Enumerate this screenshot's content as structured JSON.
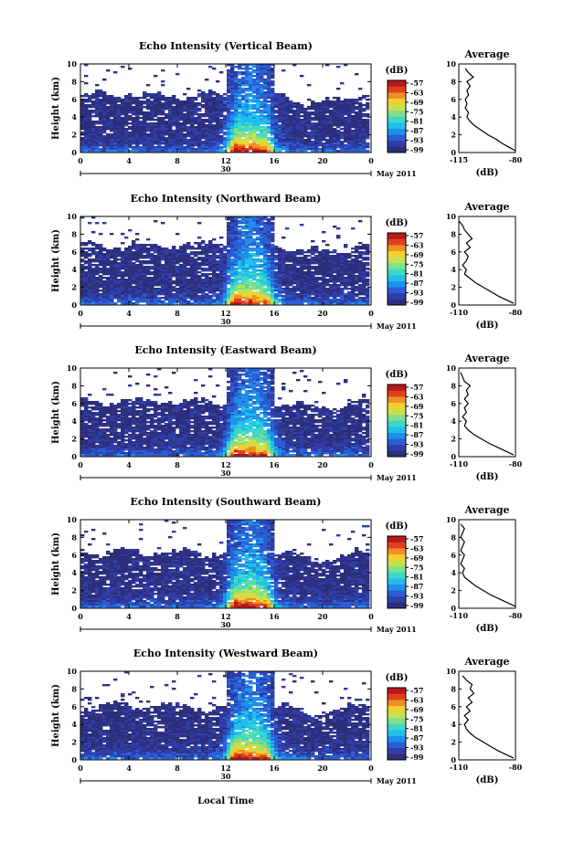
{
  "figure": {
    "xlabel_bottom": "Local Time",
    "date_label": "May 2011",
    "day_label": "30"
  },
  "colorbar": {
    "unit": "(dB)",
    "ticks": [
      "-57",
      "-63",
      "-69",
      "-75",
      "-81",
      "-87",
      "-93",
      "-99"
    ],
    "colors": [
      "#2d2f7c",
      "#2f3da6",
      "#2a5ed4",
      "#1f8fe8",
      "#20c0ec",
      "#3fd8c8",
      "#7de08a",
      "#c8e050",
      "#f0d030",
      "#f09020",
      "#e04020",
      "#b81818"
    ]
  },
  "chart_data": [
    {
      "type": "heatmap",
      "title": "Echo Intensity (Vertical Beam)",
      "xlabel": "",
      "ylabel": "Height (km)",
      "xlim": [
        0,
        24
      ],
      "ylim": [
        0,
        10
      ],
      "xticks": [
        "0",
        "4",
        "8",
        "12",
        "16",
        "20",
        "0"
      ],
      "yticks": [
        "0",
        "2",
        "4",
        "6",
        "8",
        "10"
      ],
      "clim": [
        -99,
        -57
      ],
      "profile": {
        "title": "Average",
        "xlabel": "(dB)",
        "xticks": [
          "-115",
          "-80"
        ],
        "xlim": [
          -115,
          -80
        ],
        "height": [
          0.2,
          0.6,
          1.0,
          1.5,
          2.0,
          2.5,
          3.0,
          3.5,
          4.0,
          4.5,
          5.0,
          5.5,
          6.0,
          6.5,
          7.0,
          7.5,
          8.0,
          8.5,
          9.0,
          9.5
        ],
        "value": [
          -80,
          -84,
          -88,
          -92,
          -97,
          -101,
          -105,
          -108,
          -110,
          -109,
          -111,
          -110,
          -111,
          -109,
          -110,
          -108,
          -110,
          -106,
          -109,
          -111
        ]
      }
    },
    {
      "type": "heatmap",
      "title": "Echo Intensity (Northward Beam)",
      "xlabel": "",
      "ylabel": "Height (km)",
      "xlim": [
        0,
        24
      ],
      "ylim": [
        0,
        10
      ],
      "xticks": [
        "0",
        "4",
        "8",
        "12",
        "16",
        "20",
        "0"
      ],
      "yticks": [
        "0",
        "2",
        "4",
        "6",
        "8",
        "10"
      ],
      "clim": [
        -99,
        -57
      ],
      "profile": {
        "title": "Average",
        "xlabel": "(dB)",
        "xticks": [
          "-110",
          "-80"
        ],
        "xlim": [
          -110,
          -80
        ],
        "height": [
          0.2,
          0.6,
          1.0,
          1.5,
          2.0,
          2.5,
          3.0,
          3.5,
          4.0,
          4.5,
          5.0,
          5.5,
          6.0,
          6.5,
          7.0,
          7.5,
          8.0,
          8.5,
          9.0,
          9.5
        ],
        "value": [
          -81,
          -85,
          -89,
          -93,
          -97,
          -101,
          -104,
          -107,
          -106,
          -108,
          -106,
          -105,
          -107,
          -104,
          -106,
          -103,
          -105,
          -107,
          -108,
          -110
        ]
      }
    },
    {
      "type": "heatmap",
      "title": "Echo Intensity (Eastward Beam)",
      "xlabel": "",
      "ylabel": "Height (km)",
      "xlim": [
        0,
        24
      ],
      "ylim": [
        0,
        10
      ],
      "xticks": [
        "0",
        "4",
        "8",
        "12",
        "16",
        "20",
        "0"
      ],
      "yticks": [
        "0",
        "2",
        "4",
        "6",
        "8",
        "10"
      ],
      "clim": [
        -99,
        -57
      ],
      "profile": {
        "title": "Average",
        "xlabel": "(dB)",
        "xticks": [
          "-110",
          "-80"
        ],
        "xlim": [
          -110,
          -80
        ],
        "height": [
          0.2,
          0.6,
          1.0,
          1.5,
          2.0,
          2.5,
          3.0,
          3.5,
          4.0,
          4.5,
          5.0,
          5.5,
          6.0,
          6.5,
          7.0,
          7.5,
          8.0,
          8.5,
          9.0,
          9.5
        ],
        "value": [
          -81,
          -85,
          -89,
          -94,
          -98,
          -102,
          -105,
          -107,
          -106,
          -108,
          -106,
          -107,
          -105,
          -107,
          -105,
          -106,
          -104,
          -107,
          -108,
          -109
        ]
      }
    },
    {
      "type": "heatmap",
      "title": "Echo Intensity (Southward Beam)",
      "xlabel": "",
      "ylabel": "Height (km)",
      "xlim": [
        0,
        24
      ],
      "ylim": [
        0,
        10
      ],
      "xticks": [
        "0",
        "4",
        "8",
        "12",
        "16",
        "20",
        "0"
      ],
      "yticks": [
        "0",
        "2",
        "4",
        "6",
        "8",
        "10"
      ],
      "clim": [
        -99,
        -57
      ],
      "profile": {
        "title": "Average",
        "xlabel": "(dB)",
        "xticks": [
          "-110",
          "-80"
        ],
        "xlim": [
          -110,
          -80
        ],
        "height": [
          0.2,
          0.6,
          1.0,
          1.5,
          2.0,
          2.5,
          3.0,
          3.5,
          4.0,
          4.5,
          5.0,
          5.5,
          6.0,
          6.5,
          7.0,
          7.5,
          8.0,
          8.5,
          9.0,
          9.5
        ],
        "value": [
          -80,
          -84,
          -88,
          -93,
          -97,
          -101,
          -104,
          -107,
          -108,
          -107,
          -109,
          -108,
          -107,
          -109,
          -108,
          -107,
          -109,
          -108,
          -107,
          -109
        ]
      }
    },
    {
      "type": "heatmap",
      "title": "Echo Intensity (Westward Beam)",
      "xlabel": "",
      "ylabel": "Height (km)",
      "xlim": [
        0,
        24
      ],
      "ylim": [
        0,
        10
      ],
      "xticks": [
        "0",
        "4",
        "8",
        "12",
        "16",
        "20",
        "0"
      ],
      "yticks": [
        "0",
        "2",
        "4",
        "6",
        "8",
        "10"
      ],
      "clim": [
        -99,
        -57
      ],
      "profile": {
        "title": "Average",
        "xlabel": "(dB)",
        "xticks": [
          "-110",
          "-80"
        ],
        "xlim": [
          -110,
          -80
        ],
        "height": [
          0.2,
          0.6,
          1.0,
          1.5,
          2.0,
          2.5,
          3.0,
          3.5,
          4.0,
          4.5,
          5.0,
          5.5,
          6.0,
          6.5,
          7.0,
          7.5,
          8.0,
          8.5,
          9.0,
          9.5
        ],
        "value": [
          -81,
          -85,
          -89,
          -93,
          -97,
          -101,
          -104,
          -106,
          -107,
          -105,
          -107,
          -104,
          -106,
          -103,
          -105,
          -102,
          -104,
          -103,
          -106,
          -108
        ]
      }
    }
  ]
}
